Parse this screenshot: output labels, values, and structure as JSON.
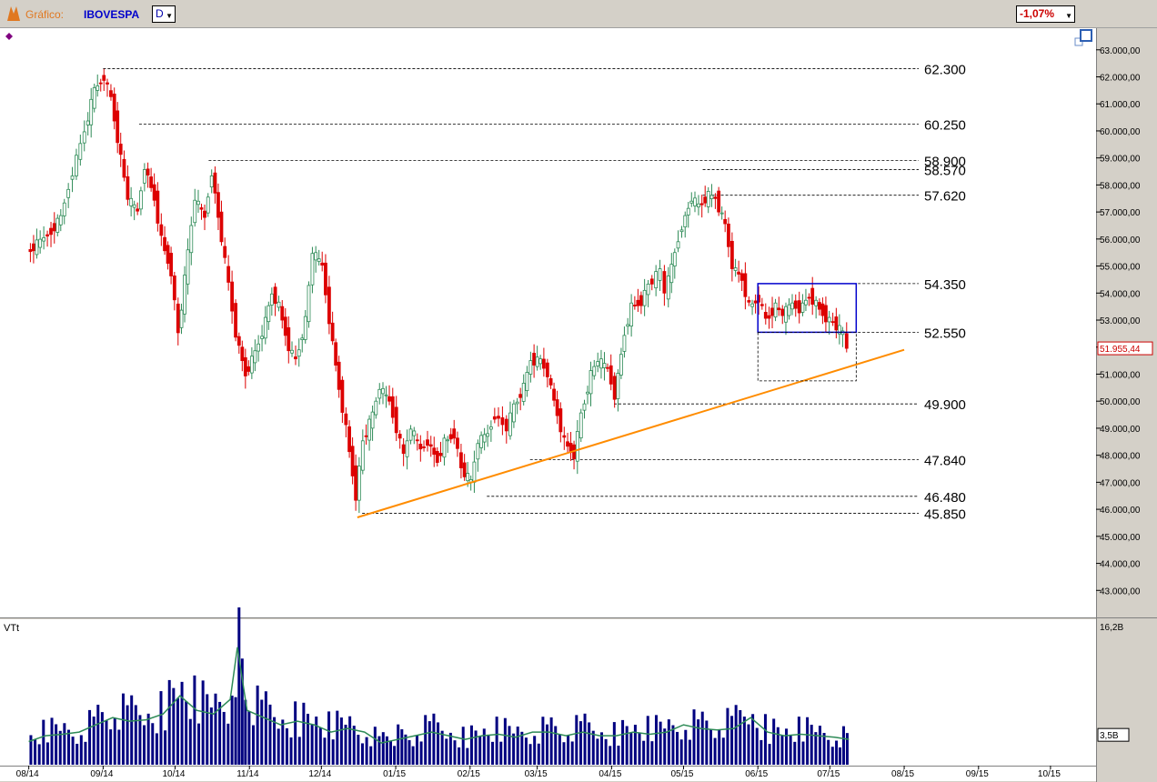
{
  "toolbar": {
    "label": "Gráfico:",
    "symbol": "IBOVESPA",
    "period": "D",
    "change": "-1,07%"
  },
  "colors": {
    "up": "#2e8b57",
    "down": "#dd0000",
    "volume": "#000080",
    "volume_ma": "#2e8b57",
    "trendline": "#ff8c00",
    "box": "#0000cc",
    "price_tag": "#cc0000"
  },
  "chart_data": {
    "type": "candlestick",
    "price_axis": {
      "ticks": [
        "63.000,00",
        "62.000,00",
        "61.000,00",
        "60.000,00",
        "59.000,00",
        "58.000,00",
        "57.000,00",
        "56.000,00",
        "55.000,00",
        "54.000,00",
        "53.000,00",
        "52.000,00",
        "51.000,00",
        "50.000,00",
        "49.000,00",
        "48.000,00",
        "47.000,00",
        "46.000,00",
        "45.000,00",
        "44.000,00",
        "43.000,00"
      ],
      "range": [
        42000,
        63800
      ]
    },
    "x_ticks": [
      "08/14",
      "09/14",
      "10/14",
      "11/14",
      "12/14",
      "01/15",
      "02/15",
      "03/15",
      "04/15",
      "05/15",
      "06/15",
      "07/15",
      "08/15",
      "09/15",
      "10/15"
    ],
    "last_price_label": "51.955,44",
    "levels": [
      {
        "label": "62.300",
        "value": 62300
      },
      {
        "label": "60.250",
        "value": 60250
      },
      {
        "label": "58.900",
        "value": 58900
      },
      {
        "label": "58.570",
        "value": 58570
      },
      {
        "label": "57.620",
        "value": 57620
      },
      {
        "label": "54.350",
        "value": 54350
      },
      {
        "label": "52.550",
        "value": 52550
      },
      {
        "label": "49.900",
        "value": 49900
      },
      {
        "label": "47.840",
        "value": 47840
      },
      {
        "label": "46.480",
        "value": 46480
      },
      {
        "label": "45.850",
        "value": 45850
      }
    ],
    "trendline": {
      "from": {
        "date": "2014-12-16",
        "value": 45700
      },
      "to": {
        "date": "2015-08-01",
        "value": 51900
      }
    },
    "range_box": {
      "from": "2015-06-01",
      "to": "2015-07-12",
      "high": 54350,
      "low": 52550
    },
    "closes": [
      {
        "date": "2014-08-01",
        "close": 55500
      },
      {
        "date": "2014-08-05",
        "close": 55800
      },
      {
        "date": "2014-08-11",
        "close": 56300
      },
      {
        "date": "2014-08-15",
        "close": 56800
      },
      {
        "date": "2014-08-20",
        "close": 58500
      },
      {
        "date": "2014-08-25",
        "close": 60000
      },
      {
        "date": "2014-08-29",
        "close": 61500
      },
      {
        "date": "2014-09-02",
        "close": 62000
      },
      {
        "date": "2014-09-05",
        "close": 61200
      },
      {
        "date": "2014-09-09",
        "close": 59000
      },
      {
        "date": "2014-09-12",
        "close": 57500
      },
      {
        "date": "2014-09-16",
        "close": 57000
      },
      {
        "date": "2014-09-19",
        "close": 58700
      },
      {
        "date": "2014-09-23",
        "close": 57500
      },
      {
        "date": "2014-09-26",
        "close": 56000
      },
      {
        "date": "2014-09-30",
        "close": 54800
      },
      {
        "date": "2014-10-03",
        "close": 52500
      },
      {
        "date": "2014-10-07",
        "close": 55500
      },
      {
        "date": "2014-10-10",
        "close": 57500
      },
      {
        "date": "2014-10-14",
        "close": 56800
      },
      {
        "date": "2014-10-17",
        "close": 58500
      },
      {
        "date": "2014-10-21",
        "close": 56000
      },
      {
        "date": "2014-10-24",
        "close": 54300
      },
      {
        "date": "2014-10-27",
        "close": 52500
      },
      {
        "date": "2014-10-31",
        "close": 51000
      },
      {
        "date": "2014-11-04",
        "close": 51800
      },
      {
        "date": "2014-11-07",
        "close": 52500
      },
      {
        "date": "2014-11-11",
        "close": 54000
      },
      {
        "date": "2014-11-14",
        "close": 53500
      },
      {
        "date": "2014-11-18",
        "close": 52000
      },
      {
        "date": "2014-11-21",
        "close": 51500
      },
      {
        "date": "2014-11-25",
        "close": 53000
      },
      {
        "date": "2014-11-28",
        "close": 55500
      },
      {
        "date": "2014-12-02",
        "close": 55000
      },
      {
        "date": "2014-12-05",
        "close": 53000
      },
      {
        "date": "2014-12-09",
        "close": 50500
      },
      {
        "date": "2014-12-12",
        "close": 49000
      },
      {
        "date": "2014-12-16",
        "close": 46500
      },
      {
        "date": "2014-12-19",
        "close": 48500
      },
      {
        "date": "2014-12-23",
        "close": 49500
      },
      {
        "date": "2014-12-26",
        "close": 50500
      },
      {
        "date": "2014-12-30",
        "close": 50000
      },
      {
        "date": "2015-01-05",
        "close": 48000
      },
      {
        "date": "2015-01-08",
        "close": 49000
      },
      {
        "date": "2015-01-12",
        "close": 48200
      },
      {
        "date": "2015-01-15",
        "close": 48500
      },
      {
        "date": "2015-01-19",
        "close": 47800
      },
      {
        "date": "2015-01-22",
        "close": 48500
      },
      {
        "date": "2015-01-26",
        "close": 48800
      },
      {
        "date": "2015-01-29",
        "close": 47500
      },
      {
        "date": "2015-02-02",
        "close": 47000
      },
      {
        "date": "2015-02-05",
        "close": 48500
      },
      {
        "date": "2015-02-09",
        "close": 48800
      },
      {
        "date": "2015-02-12",
        "close": 49500
      },
      {
        "date": "2015-02-17",
        "close": 49000
      },
      {
        "date": "2015-02-20",
        "close": 49800
      },
      {
        "date": "2015-02-24",
        "close": 50500
      },
      {
        "date": "2015-02-27",
        "close": 51500
      },
      {
        "date": "2015-03-03",
        "close": 51500
      },
      {
        "date": "2015-03-06",
        "close": 51000
      },
      {
        "date": "2015-03-10",
        "close": 49500
      },
      {
        "date": "2015-03-13",
        "close": 48500
      },
      {
        "date": "2015-03-17",
        "close": 48000
      },
      {
        "date": "2015-03-20",
        "close": 49500
      },
      {
        "date": "2015-03-24",
        "close": 51000
      },
      {
        "date": "2015-03-27",
        "close": 51500
      },
      {
        "date": "2015-03-31",
        "close": 51200
      },
      {
        "date": "2015-04-03",
        "close": 50200
      },
      {
        "date": "2015-04-07",
        "close": 52500
      },
      {
        "date": "2015-04-10",
        "close": 53500
      },
      {
        "date": "2015-04-14",
        "close": 53700
      },
      {
        "date": "2015-04-17",
        "close": 54300
      },
      {
        "date": "2015-04-22",
        "close": 54800
      },
      {
        "date": "2015-04-24",
        "close": 54000
      },
      {
        "date": "2015-04-28",
        "close": 55500
      },
      {
        "date": "2015-05-01",
        "close": 56500
      },
      {
        "date": "2015-05-05",
        "close": 57500
      },
      {
        "date": "2015-05-08",
        "close": 57200
      },
      {
        "date": "2015-05-12",
        "close": 57600
      },
      {
        "date": "2015-05-15",
        "close": 57500
      },
      {
        "date": "2015-05-19",
        "close": 56500
      },
      {
        "date": "2015-05-22",
        "close": 55000
      },
      {
        "date": "2015-05-26",
        "close": 54500
      },
      {
        "date": "2015-05-29",
        "close": 53500
      },
      {
        "date": "2015-06-02",
        "close": 53800
      },
      {
        "date": "2015-06-05",
        "close": 53000
      },
      {
        "date": "2015-06-09",
        "close": 53500
      },
      {
        "date": "2015-06-12",
        "close": 53200
      },
      {
        "date": "2015-06-16",
        "close": 53600
      },
      {
        "date": "2015-06-19",
        "close": 53400
      },
      {
        "date": "2015-06-23",
        "close": 53900
      },
      {
        "date": "2015-06-26",
        "close": 53600
      },
      {
        "date": "2015-06-30",
        "close": 53100
      },
      {
        "date": "2015-07-03",
        "close": 52900
      },
      {
        "date": "2015-07-07",
        "close": 52500
      },
      {
        "date": "2015-07-09",
        "close": 51955
      }
    ],
    "volume": {
      "label": "VTt",
      "ticks": [
        "16,2B",
        "3,5B"
      ],
      "range": [
        0,
        16.2
      ],
      "bars": [
        {
          "date": "2014-08-01",
          "value": 3.2
        },
        {
          "date": "2014-08-08",
          "value": 4.0
        },
        {
          "date": "2014-08-15",
          "value": 4.2
        },
        {
          "date": "2014-08-22",
          "value": 4.5
        },
        {
          "date": "2014-08-29",
          "value": 5.5
        },
        {
          "date": "2014-09-05",
          "value": 6.5
        },
        {
          "date": "2014-09-12",
          "value": 6.0
        },
        {
          "date": "2014-09-19",
          "value": 6.2
        },
        {
          "date": "2014-09-26",
          "value": 7.0
        },
        {
          "date": "2014-10-03",
          "value": 9.5
        },
        {
          "date": "2014-10-10",
          "value": 7.5
        },
        {
          "date": "2014-10-17",
          "value": 7.0
        },
        {
          "date": "2014-10-24",
          "value": 9.0
        },
        {
          "date": "2014-10-27",
          "value": 16.2
        },
        {
          "date": "2014-10-31",
          "value": 7.5
        },
        {
          "date": "2014-11-07",
          "value": 6.5
        },
        {
          "date": "2014-11-14",
          "value": 5.5
        },
        {
          "date": "2014-11-21",
          "value": 6.0
        },
        {
          "date": "2014-11-28",
          "value": 5.5
        },
        {
          "date": "2014-12-05",
          "value": 4.5
        },
        {
          "date": "2014-12-12",
          "value": 5.0
        },
        {
          "date": "2014-12-19",
          "value": 4.5
        },
        {
          "date": "2014-12-26",
          "value": 3.0
        },
        {
          "date": "2015-01-09",
          "value": 4.0
        },
        {
          "date": "2015-01-16",
          "value": 4.5
        },
        {
          "date": "2015-01-23",
          "value": 4.0
        },
        {
          "date": "2015-01-30",
          "value": 3.5
        },
        {
          "date": "2015-02-06",
          "value": 4.0
        },
        {
          "date": "2015-02-13",
          "value": 4.2
        },
        {
          "date": "2015-02-20",
          "value": 3.8
        },
        {
          "date": "2015-02-27",
          "value": 4.5
        },
        {
          "date": "2015-03-06",
          "value": 4.5
        },
        {
          "date": "2015-03-13",
          "value": 4.0
        },
        {
          "date": "2015-03-20",
          "value": 4.5
        },
        {
          "date": "2015-03-27",
          "value": 4.0
        },
        {
          "date": "2015-04-03",
          "value": 4.0
        },
        {
          "date": "2015-04-10",
          "value": 4.5
        },
        {
          "date": "2015-04-17",
          "value": 4.2
        },
        {
          "date": "2015-04-24",
          "value": 4.5
        },
        {
          "date": "2015-05-01",
          "value": 5.5
        },
        {
          "date": "2015-05-08",
          "value": 5.0
        },
        {
          "date": "2015-05-15",
          "value": 4.8
        },
        {
          "date": "2015-05-22",
          "value": 5.0
        },
        {
          "date": "2015-05-29",
          "value": 6.5
        },
        {
          "date": "2015-06-05",
          "value": 4.5
        },
        {
          "date": "2015-06-12",
          "value": 4.0
        },
        {
          "date": "2015-06-19",
          "value": 4.2
        },
        {
          "date": "2015-06-26",
          "value": 4.0
        },
        {
          "date": "2015-07-03",
          "value": 3.8
        },
        {
          "date": "2015-07-09",
          "value": 3.5
        }
      ]
    }
  }
}
